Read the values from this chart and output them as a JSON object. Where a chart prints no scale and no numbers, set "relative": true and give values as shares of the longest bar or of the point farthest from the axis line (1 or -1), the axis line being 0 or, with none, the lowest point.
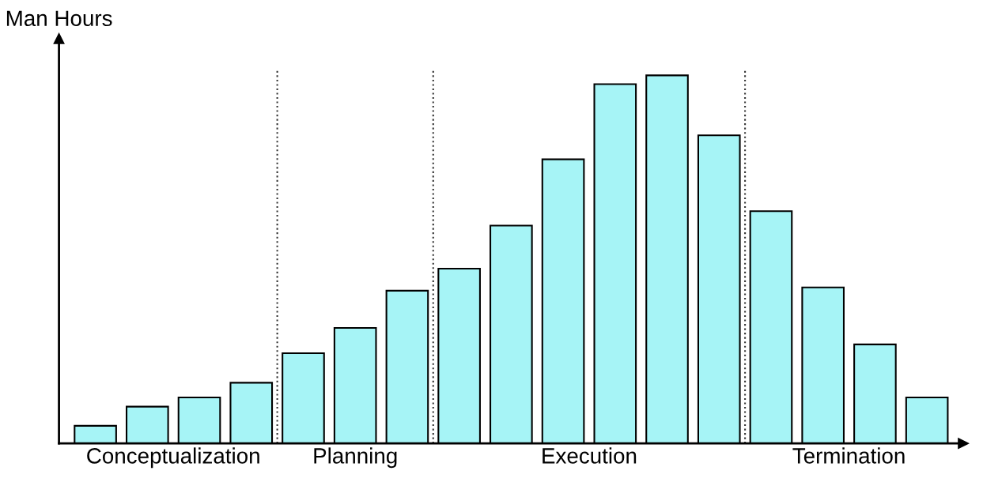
{
  "chart_data": {
    "type": "bar",
    "ylabel": "Man Hours",
    "relative": true,
    "categories": [
      null,
      null,
      null,
      null,
      null,
      null,
      null,
      null,
      null,
      null,
      null,
      null,
      null,
      null,
      null,
      null,
      null
    ],
    "series": [
      {
        "color": "#a6f4f6",
        "values": [
          0.048,
          0.1,
          0.125,
          0.165,
          0.245,
          0.314,
          0.415,
          0.475,
          0.592,
          0.772,
          0.976,
          1,
          0.837,
          0.631,
          0.424,
          0.269,
          0.125
        ]
      }
    ],
    "annotations": [
      "Conceptualization",
      "Planning",
      "Execution",
      "Termination"
    ]
  }
}
